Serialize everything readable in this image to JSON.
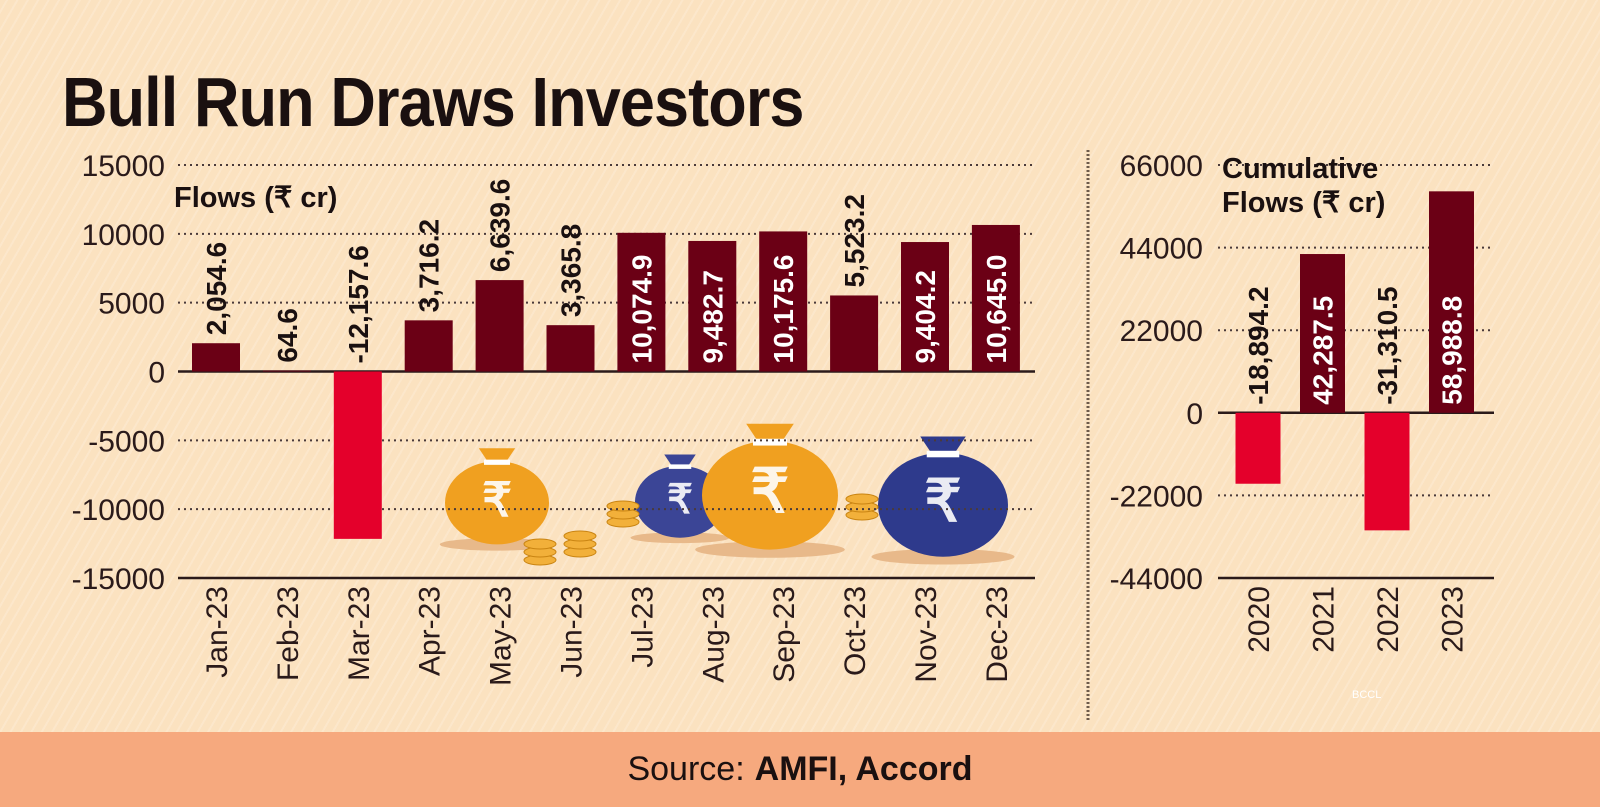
{
  "title": "Bull Run Draws Investors",
  "source": {
    "prefix": "Source:",
    "names": "AMFI, Accord"
  },
  "watermark": "BCCL",
  "colors": {
    "positive": "#6b0015",
    "negative": "#e4002b",
    "background": "#fbe2c0",
    "footer": "#f6a97e"
  },
  "chart_data": [
    {
      "type": "bar",
      "title": "Flows (₹ cr)",
      "categories": [
        "Jan-23",
        "Feb-23",
        "Mar-23",
        "Apr-23",
        "May-23",
        "Jun-23",
        "Jul-23",
        "Aug-23",
        "Sep-23",
        "Oct-23",
        "Nov-23",
        "Dec-23"
      ],
      "values": [
        2054.6,
        64.6,
        -12157.6,
        3716.2,
        6639.6,
        3365.8,
        10074.9,
        9482.7,
        10175.6,
        5523.2,
        9404.2,
        10645.0
      ],
      "data_labels": [
        "2,054.6",
        "64.6",
        "-12,157.6",
        "3,716.2",
        "6,639.6",
        "3,365.8",
        "10,074.9",
        "9,482.7",
        "10,175.6",
        "5,523.2",
        "9,404.2",
        "10,645.0"
      ],
      "yticks": [
        "15000",
        "10000",
        "5000",
        "0",
        "-5000",
        "-10000",
        "-15000"
      ],
      "ylim": [
        -15000,
        15000
      ],
      "grid": "dotted"
    },
    {
      "type": "bar",
      "title": "Cumulative Flows (₹ cr)",
      "title_lines": [
        "Cumulative",
        "Flows (₹ cr)"
      ],
      "categories": [
        "2020",
        "2021",
        "2022",
        "2023"
      ],
      "values": [
        -18894.2,
        42287.5,
        -31310.5,
        58988.8
      ],
      "data_labels": [
        "-18,894.2",
        "42,287.5",
        "-31,310.5",
        "58,988.8"
      ],
      "yticks": [
        "66000",
        "44000",
        "22000",
        "0",
        "-22000",
        "-44000"
      ],
      "ylim": [
        -44000,
        66000
      ],
      "grid": "dotted"
    }
  ]
}
